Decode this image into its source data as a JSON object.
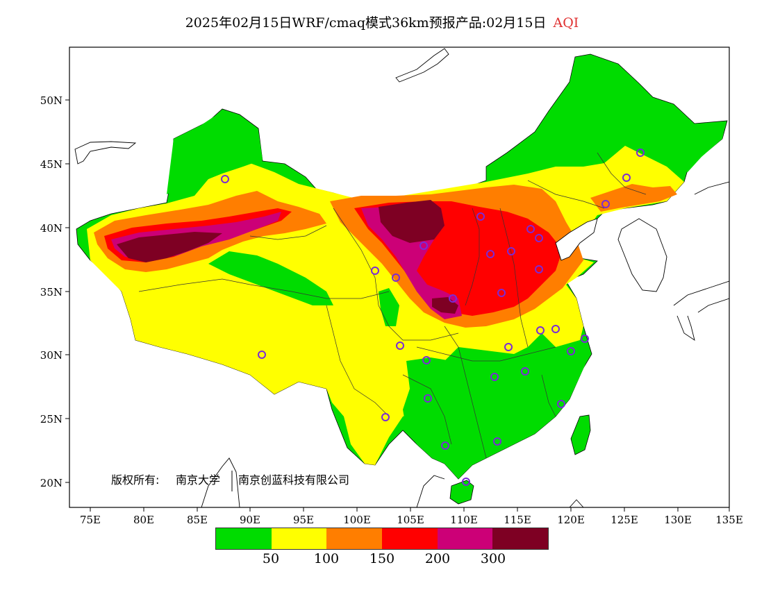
{
  "title": {
    "main": "2025年02月15日WRF/cmaq模式36km预报产品:02月15日",
    "variable": "AQI"
  },
  "axes": {
    "lat_labels": [
      "50N",
      "45N",
      "40N",
      "35N",
      "30N",
      "25N",
      "20N"
    ],
    "lon_labels": [
      "75E",
      "80E",
      "85E",
      "90E",
      "95E",
      "100E",
      "105E",
      "110E",
      "115E",
      "120E",
      "125E",
      "130E",
      "135E"
    ]
  },
  "copyright": {
    "label": "版权所有:",
    "org1": "南京大学",
    "org2": "南京创蓝科技有限公司"
  },
  "legend": {
    "colors": [
      "#00dc00",
      "#ffff00",
      "#ff7e00",
      "#ff0000",
      "#cc0077",
      "#7e0023"
    ],
    "labels": [
      "50",
      "100",
      "150",
      "200",
      "300"
    ]
  },
  "colors": {
    "station_marker": "#7a2ad8",
    "coastline": "#000000"
  }
}
